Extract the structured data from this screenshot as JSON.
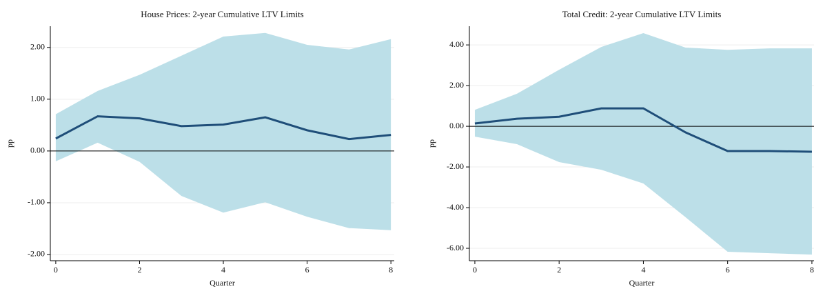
{
  "chart_data": [
    {
      "type": "line",
      "title": "House Prices: 2-year Cumulative LTV Limits",
      "x_label": "Quarter",
      "y_label": "pp",
      "x": [
        0,
        1,
        2,
        3,
        4,
        5,
        6,
        7,
        8
      ],
      "values": [
        0.24,
        0.67,
        0.63,
        0.48,
        0.51,
        0.65,
        0.4,
        0.23,
        0.31
      ],
      "upper": [
        0.71,
        1.16,
        1.47,
        1.84,
        2.21,
        2.28,
        2.05,
        1.96,
        2.16
      ],
      "lower": [
        -0.2,
        0.16,
        -0.21,
        -0.87,
        -1.19,
        -0.99,
        -1.27,
        -1.49,
        -1.53
      ],
      "line_color": "#1f4e79",
      "band_color": "#bcdfe8",
      "refline": 0,
      "xlim": [
        -0.13,
        8.08
      ],
      "ylim": [
        -2.12,
        2.41
      ],
      "xticks": [
        0,
        2,
        4,
        6,
        8
      ],
      "yticks": [
        {
          "value": -2,
          "label": "-2.00"
        },
        {
          "value": -1,
          "label": "-1.00"
        },
        {
          "value": 0,
          "label": "0.00"
        },
        {
          "value": 1,
          "label": "1.00"
        },
        {
          "value": 2,
          "label": "2.00"
        }
      ],
      "grid": true
    },
    {
      "type": "line",
      "title": "Total Credit: 2-year Cumulative LTV Limits",
      "x_label": "Quarter",
      "y_label": "pp",
      "x": [
        0,
        1,
        2,
        3,
        4,
        5,
        6,
        7,
        8
      ],
      "values": [
        0.14,
        0.37,
        0.47,
        0.88,
        0.88,
        -0.3,
        -1.22,
        -1.22,
        -1.25
      ],
      "upper": [
        0.81,
        1.6,
        2.78,
        3.9,
        4.58,
        3.87,
        3.76,
        3.83,
        3.83
      ],
      "lower": [
        -0.51,
        -0.88,
        -1.76,
        -2.14,
        -2.81,
        -4.47,
        -6.17,
        -6.24,
        -6.31
      ],
      "line_color": "#1f4e79",
      "band_color": "#bcdfe8",
      "refline": 0,
      "xlim": [
        -0.13,
        8.05
      ],
      "ylim": [
        -6.61,
        4.92
      ],
      "xticks": [
        0,
        2,
        4,
        6,
        8
      ],
      "yticks": [
        {
          "value": -6,
          "label": "-6.00"
        },
        {
          "value": -4,
          "label": "-4.00"
        },
        {
          "value": -2,
          "label": "-2.00"
        },
        {
          "value": 0,
          "label": "0.00"
        },
        {
          "value": 2,
          "label": "2.00"
        },
        {
          "value": 4,
          "label": "4.00"
        }
      ],
      "grid": true
    }
  ]
}
